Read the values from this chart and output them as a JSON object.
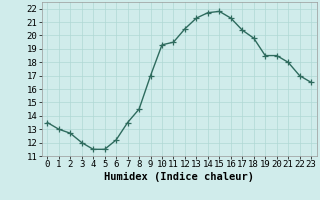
{
  "x": [
    0,
    1,
    2,
    3,
    4,
    5,
    6,
    7,
    8,
    9,
    10,
    11,
    12,
    13,
    14,
    15,
    16,
    17,
    18,
    19,
    20,
    21,
    22,
    23
  ],
  "y": [
    13.5,
    13.0,
    12.7,
    12.0,
    11.5,
    11.5,
    12.2,
    13.5,
    14.5,
    17.0,
    19.3,
    19.5,
    20.5,
    21.3,
    21.7,
    21.8,
    21.3,
    20.4,
    19.8,
    18.5,
    18.5,
    18.0,
    17.0,
    16.5
  ],
  "title": "",
  "xlabel": "Humidex (Indice chaleur)",
  "ylabel": "",
  "xlim": [
    -0.5,
    23.5
  ],
  "ylim": [
    11,
    22.5
  ],
  "yticks": [
    11,
    12,
    13,
    14,
    15,
    16,
    17,
    18,
    19,
    20,
    21,
    22
  ],
  "xticks": [
    0,
    1,
    2,
    3,
    4,
    5,
    6,
    7,
    8,
    9,
    10,
    11,
    12,
    13,
    14,
    15,
    16,
    17,
    18,
    19,
    20,
    21,
    22,
    23
  ],
  "line_color": "#2e6b5e",
  "marker": "+",
  "bg_color": "#d0eceb",
  "grid_color": "#b0d8d5",
  "xlabel_fontsize": 7.5,
  "tick_fontsize": 6.5,
  "linewidth": 1.0,
  "markersize": 4,
  "markeredgewidth": 0.9
}
